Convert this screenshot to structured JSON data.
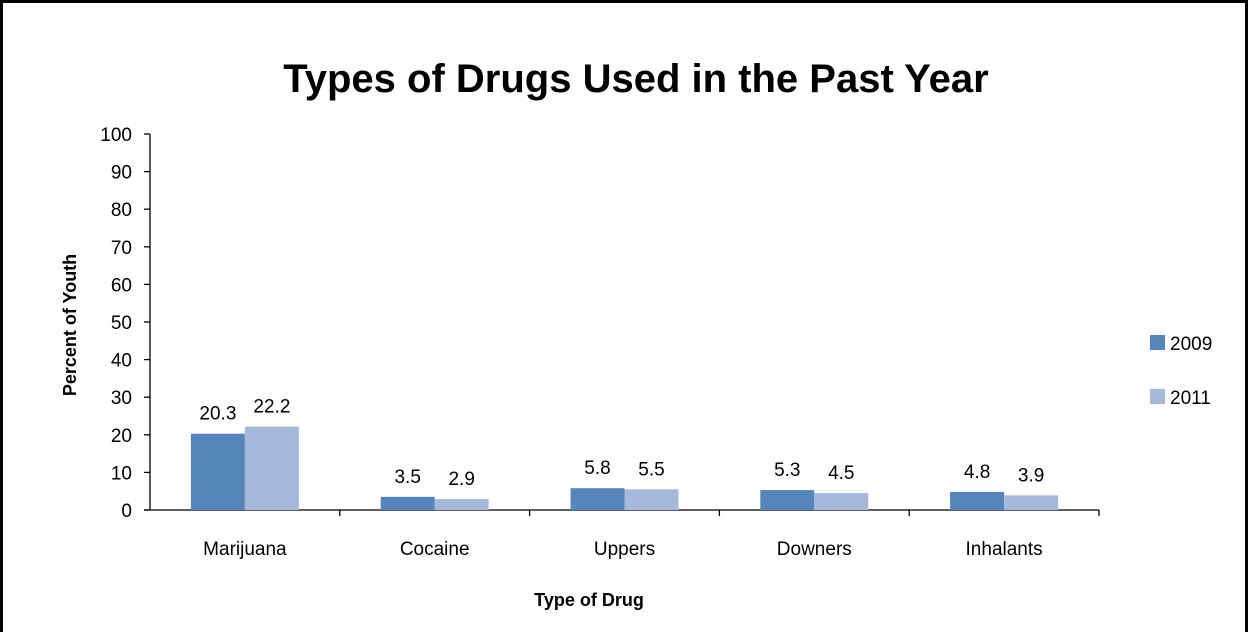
{
  "chart_data": {
    "type": "bar",
    "title": "Types of Drugs Used in the Past Year",
    "xlabel": "Type of Drug",
    "ylabel": "Percent of Youth",
    "ylim": [
      0,
      100
    ],
    "yticks": [
      0,
      10,
      20,
      30,
      40,
      50,
      60,
      70,
      80,
      90,
      100
    ],
    "categories": [
      "Marijuana",
      "Cocaine",
      "Uppers",
      "Downers",
      "Inhalants"
    ],
    "series": [
      {
        "name": "2009",
        "values": [
          20.3,
          3.5,
          5.8,
          5.3,
          4.8
        ],
        "labels": [
          "20.3",
          "3.5",
          "5.8",
          "5.3",
          "4.8"
        ],
        "color": "#5585BB"
      },
      {
        "name": "2011",
        "values": [
          22.2,
          2.9,
          5.5,
          4.5,
          3.9
        ],
        "labels": [
          "22.2",
          "2.9",
          "5.5",
          "4.5",
          "3.9"
        ],
        "color": "#A6B9DB"
      }
    ],
    "grid": false,
    "legend": "right"
  }
}
